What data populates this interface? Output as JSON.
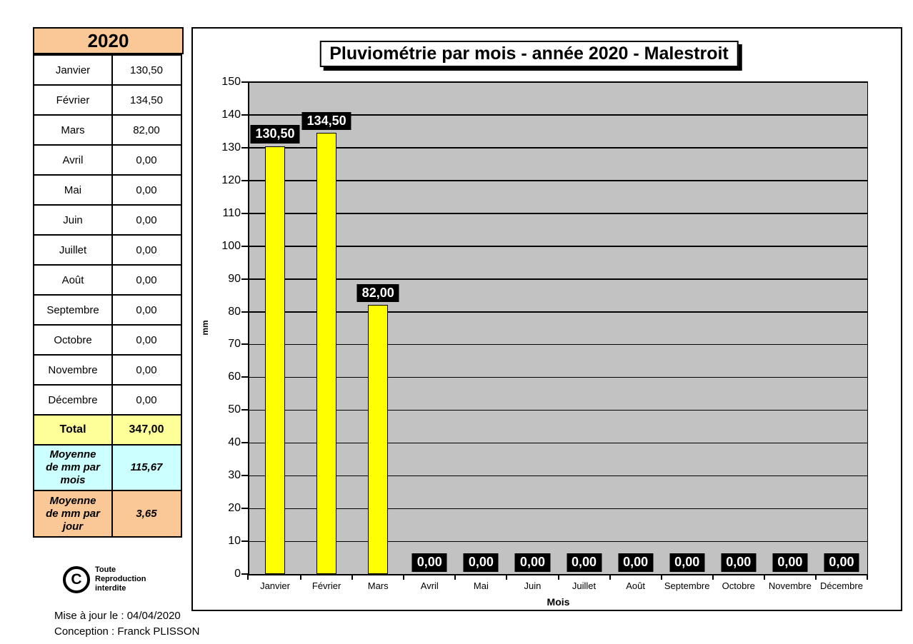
{
  "colors": {
    "header_orange": "#F9C896",
    "total_yellow": "#FFFF99",
    "mean_blue": "#CCFFFF",
    "mean_day_orange": "#F9C896",
    "bar_yellow": "#FFFF00",
    "plot_gray": "#C2C2C2",
    "value_label_bg": "#000000",
    "value_label_fg": "#FFFFFF"
  },
  "table": {
    "year": "2020",
    "rows": [
      {
        "month": "Janvier",
        "value": "130,50"
      },
      {
        "month": "Février",
        "value": "134,50"
      },
      {
        "month": "Mars",
        "value": "82,00"
      },
      {
        "month": "Avril",
        "value": "0,00"
      },
      {
        "month": "Mai",
        "value": "0,00"
      },
      {
        "month": "Juin",
        "value": "0,00"
      },
      {
        "month": "Juillet",
        "value": "0,00"
      },
      {
        "month": "Août",
        "value": "0,00"
      },
      {
        "month": "Septembre",
        "value": "0,00"
      },
      {
        "month": "Octobre",
        "value": "0,00"
      },
      {
        "month": "Novembre",
        "value": "0,00"
      },
      {
        "month": "Décembre",
        "value": "0,00"
      }
    ],
    "total": {
      "label": "Total",
      "value": "347,00"
    },
    "mean_month": {
      "label": "Moyenne\nde mm par\nmois",
      "value": "115,67"
    },
    "mean_day": {
      "label": "Moyenne\nde mm par\njour",
      "value": "3,65"
    }
  },
  "copyright": {
    "symbol": "C",
    "text": "Toute\nReproduction\ninterdite"
  },
  "footer": {
    "line1": "Mise à jour le : 04/04/2020",
    "line2": "Conception : Franck PLISSON"
  },
  "chart_data": {
    "type": "bar",
    "title": "Pluviométrie par mois - année 2020 - Malestroit",
    "categories": [
      "Janvier",
      "Février",
      "Mars",
      "Avril",
      "Mai",
      "Juin",
      "Juillet",
      "Août",
      "Septembre",
      "Octobre",
      "Novembre",
      "Décembre"
    ],
    "values": [
      130.5,
      134.5,
      82,
      0,
      0,
      0,
      0,
      0,
      0,
      0,
      0,
      0
    ],
    "value_labels": [
      "130,50",
      "134,50",
      "82,00",
      "0,00",
      "0,00",
      "0,00",
      "0,00",
      "0,00",
      "0,00",
      "0,00",
      "0,00",
      "0,00"
    ],
    "xlabel": "Mois",
    "ylabel": "mm",
    "ylim": [
      0,
      150
    ],
    "ytick_step": 10,
    "grid": true,
    "legend": false,
    "bar_color": "#FFFF00",
    "plot_bg": "#C2C2C2"
  }
}
